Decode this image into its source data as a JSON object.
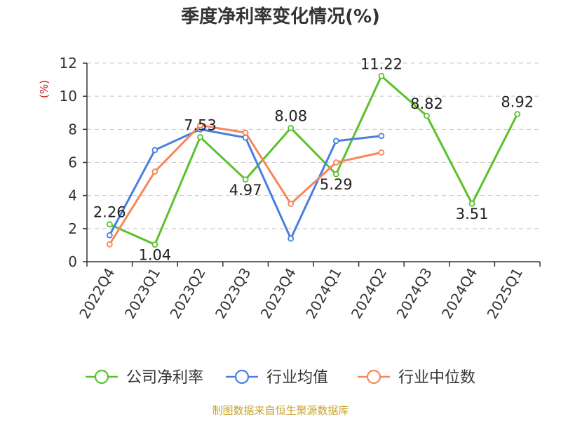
{
  "chart_data": {
    "type": "line",
    "title": "季度净利率变化情况(%)",
    "ylabel": "(%)",
    "xlabel": "",
    "categories": [
      "2022Q4",
      "2023Q1",
      "2023Q2",
      "2023Q3",
      "2023Q4",
      "2024Q1",
      "2024Q2",
      "2024Q3",
      "2024Q4",
      "2025Q1"
    ],
    "ylim": [
      0,
      12
    ],
    "yticks": [
      "0",
      "2",
      "4",
      "6",
      "8",
      "10",
      "12"
    ],
    "grid": true,
    "legend_position": "bottom",
    "series": [
      {
        "name": "公司净利率",
        "color": "#5ac12b",
        "values": [
          2.26,
          1.04,
          7.53,
          4.97,
          8.08,
          5.29,
          11.22,
          8.82,
          3.51,
          8.92
        ],
        "labels": [
          "2.26",
          "1.04",
          "7.53",
          "4.97",
          "8.08",
          "5.29",
          "11.22",
          "8.82",
          "3.51",
          "8.92"
        ]
      },
      {
        "name": "行业均值",
        "color": "#4a7ee0",
        "values": [
          1.6,
          6.75,
          8.0,
          7.5,
          1.4,
          7.3,
          7.6,
          null,
          null,
          null
        ]
      },
      {
        "name": "行业中位数",
        "color": "#f5875a",
        "values": [
          1.05,
          5.45,
          8.25,
          7.8,
          3.5,
          6.0,
          6.6,
          null,
          null,
          null
        ]
      }
    ]
  },
  "source": "制图数据来自恒生聚源数据库"
}
